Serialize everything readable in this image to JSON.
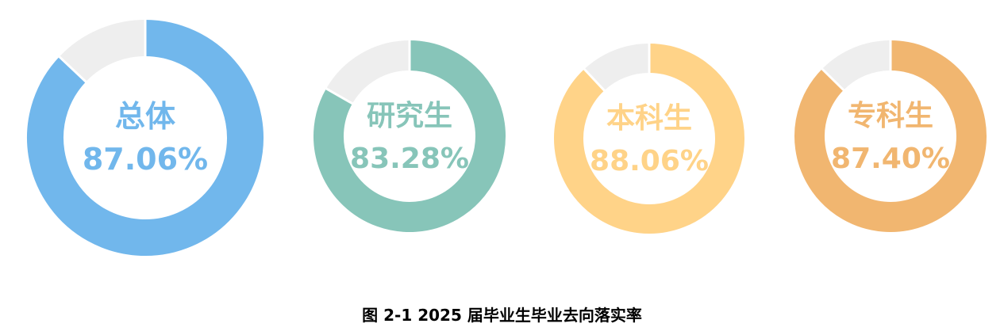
{
  "chart_data": {
    "type": "pie",
    "title": "图 2-1   2025 届毕业生毕业去向落实率",
    "remainder_color": "#eeeeee",
    "charts": [
      {
        "label": "总体",
        "value_text": "87.06%",
        "value": 87.06,
        "color": "#71b7ec"
      },
      {
        "label": "研究生",
        "value_text": "83.28%",
        "value": 83.28,
        "color": "#87c5b9"
      },
      {
        "label": "本科生",
        "value_text": "88.06%",
        "value": 88.06,
        "color": "#ffd388"
      },
      {
        "label": "专科生",
        "value_text": "87.40%",
        "value": 87.4,
        "color": "#f1b670"
      }
    ]
  }
}
